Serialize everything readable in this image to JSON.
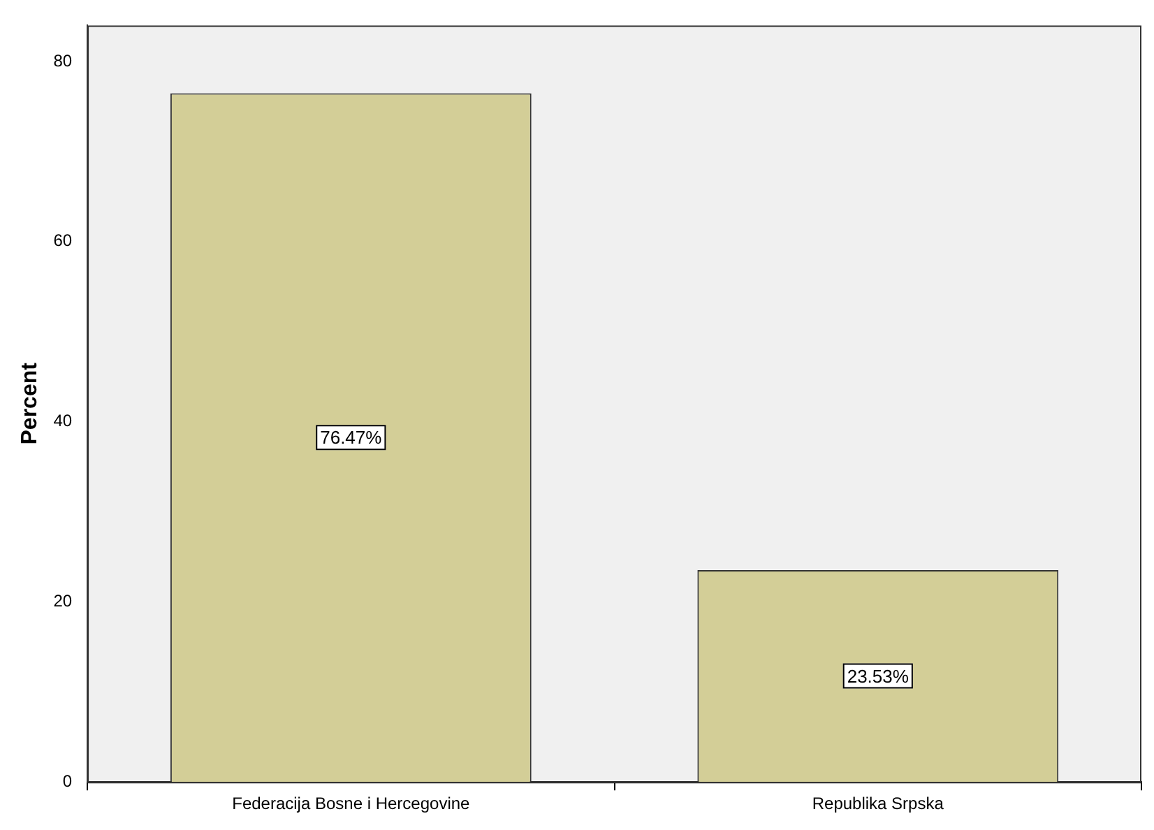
{
  "chart_data": {
    "type": "bar",
    "ylabel": "Percent",
    "categories": [
      "Federacija Bosne i Hercegovine",
      "Republika Srpska"
    ],
    "values": [
      76.47,
      23.53
    ],
    "value_labels": [
      "76.47%",
      "23.53%"
    ],
    "color": "#d3ce97",
    "ylim": [
      0,
      84
    ],
    "yticks": [
      0,
      20,
      40,
      60,
      80
    ],
    "grid": false,
    "legend": false
  }
}
